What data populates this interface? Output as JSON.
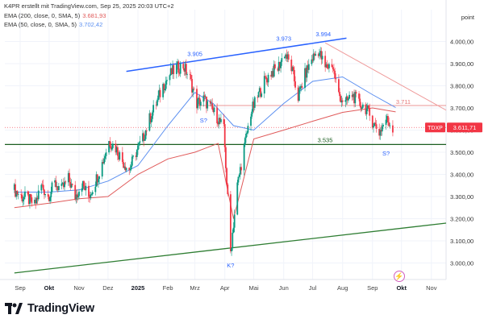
{
  "header": {
    "line1": "K4PR erstellt mit TradingView.com, Sep 25, 2025 20:03 UTC+2",
    "ema200_label": "EMA (200, close, 0, SMA, 5)",
    "ema200_value": "3.681,93",
    "ema50_label": "EMA (50, close, 0, SMA, 5)",
    "ema50_value": "3.702,42"
  },
  "brand": {
    "name": "TradingView",
    "logo_icon": "tradingview-logo-icon"
  },
  "colors": {
    "up": "#089981",
    "down": "#f23645",
    "ema50": "#5b8ff0",
    "ema200": "#e05a5a",
    "upper_trend": "#2962ff",
    "lower_trend": "#2e7d32",
    "support": "#1b5e20",
    "resistance": "#e57373",
    "price_tag": "#f23645"
  },
  "chart_data": {
    "type": "candlestick",
    "y_axis": {
      "title": "point",
      "min": 2900,
      "max": 4150,
      "ticks": [
        3000,
        3100,
        3200,
        3300,
        3400,
        3500,
        3600,
        3700,
        3800,
        3900,
        4000
      ],
      "tick_labels": [
        "3.000,00",
        "3.100,00",
        "3.200,00",
        "3.300,00",
        "3.400,00",
        "3.500,00",
        "3.600,00",
        "3.700,00",
        "3.800,00",
        "3.900,00",
        "4.000,00"
      ]
    },
    "x_axis": {
      "ticks": [
        "Sep",
        "Okt",
        "Nov",
        "Dez",
        "2025",
        "Feb",
        "Mrz",
        "Apr",
        "Mai",
        "Jun",
        "Jul",
        "Aug",
        "Sep",
        "Okt",
        "Nov"
      ],
      "tick_dates": [
        "2024-09-01",
        "2024-10-01",
        "2024-11-01",
        "2024-12-01",
        "2025-01-01",
        "2025-02-01",
        "2025-03-01",
        "2025-04-01",
        "2025-05-01",
        "2025-06-01",
        "2025-07-01",
        "2025-08-01",
        "2025-09-01",
        "2025-10-01",
        "2025-11-01"
      ],
      "highlighted": [
        "2025",
        "Okt"
      ]
    },
    "ohlc_week_close_path": [
      [
        "2024-08-26",
        3330
      ],
      [
        "2024-09-02",
        3300
      ],
      [
        "2024-09-09",
        3290
      ],
      [
        "2024-09-16",
        3260
      ],
      [
        "2024-09-23",
        3350
      ],
      [
        "2024-09-30",
        3300
      ],
      [
        "2024-10-07",
        3360
      ],
      [
        "2024-10-14",
        3330
      ],
      [
        "2024-10-21",
        3380
      ],
      [
        "2024-10-28",
        3300
      ],
      [
        "2024-11-04",
        3360
      ],
      [
        "2024-11-11",
        3300
      ],
      [
        "2024-11-18",
        3370
      ],
      [
        "2024-11-25",
        3450
      ],
      [
        "2024-12-02",
        3550
      ],
      [
        "2024-12-09",
        3520
      ],
      [
        "2024-12-16",
        3460
      ],
      [
        "2024-12-23",
        3420
      ],
      [
        "2024-12-30",
        3500
      ],
      [
        "2025-01-06",
        3560
      ],
      [
        "2025-01-13",
        3650
      ],
      [
        "2025-01-20",
        3720
      ],
      [
        "2025-01-27",
        3800
      ],
      [
        "2025-02-03",
        3850
      ],
      [
        "2025-02-10",
        3880
      ],
      [
        "2025-02-17",
        3890
      ],
      [
        "2025-02-24",
        3830
      ],
      [
        "2025-03-03",
        3720
      ],
      [
        "2025-03-10",
        3740
      ],
      [
        "2025-03-17",
        3700
      ],
      [
        "2025-03-24",
        3660
      ],
      [
        "2025-03-31",
        3600
      ],
      [
        "2025-04-07",
        3050
      ],
      [
        "2025-04-14",
        3350
      ],
      [
        "2025-04-21",
        3520
      ],
      [
        "2025-04-28",
        3680
      ],
      [
        "2025-05-05",
        3750
      ],
      [
        "2025-05-12",
        3820
      ],
      [
        "2025-05-19",
        3860
      ],
      [
        "2025-05-26",
        3880
      ],
      [
        "2025-06-02",
        3950
      ],
      [
        "2025-06-09",
        3880
      ],
      [
        "2025-06-16",
        3750
      ],
      [
        "2025-06-23",
        3850
      ],
      [
        "2025-06-30",
        3920
      ],
      [
        "2025-07-07",
        3960
      ],
      [
        "2025-07-14",
        3880
      ],
      [
        "2025-07-21",
        3900
      ],
      [
        "2025-07-28",
        3760
      ],
      [
        "2025-08-04",
        3720
      ],
      [
        "2025-08-11",
        3760
      ],
      [
        "2025-08-18",
        3720
      ],
      [
        "2025-08-25",
        3700
      ],
      [
        "2025-09-01",
        3640
      ],
      [
        "2025-09-08",
        3590
      ],
      [
        "2025-09-15",
        3650
      ],
      [
        "2025-09-22",
        3612
      ]
    ],
    "ema50": [
      [
        "2024-08-26",
        3320
      ],
      [
        "2024-10-01",
        3320
      ],
      [
        "2024-11-01",
        3330
      ],
      [
        "2024-12-01",
        3370
      ],
      [
        "2025-01-01",
        3440
      ],
      [
        "2025-02-01",
        3620
      ],
      [
        "2025-03-01",
        3770
      ],
      [
        "2025-03-20",
        3720
      ],
      [
        "2025-04-10",
        3620
      ],
      [
        "2025-05-01",
        3600
      ],
      [
        "2025-06-01",
        3720
      ],
      [
        "2025-07-01",
        3820
      ],
      [
        "2025-08-01",
        3840
      ],
      [
        "2025-09-01",
        3760
      ],
      [
        "2025-09-25",
        3702
      ]
    ],
    "ema200": [
      [
        "2024-08-26",
        3250
      ],
      [
        "2024-10-01",
        3270
      ],
      [
        "2024-11-01",
        3290
      ],
      [
        "2024-12-01",
        3300
      ],
      [
        "2025-01-01",
        3400
      ],
      [
        "2025-02-01",
        3470
      ],
      [
        "2025-03-01",
        3500
      ],
      [
        "2025-03-25",
        3540
      ],
      [
        "2025-04-10",
        3200
      ],
      [
        "2025-05-01",
        3560
      ],
      [
        "2025-06-01",
        3600
      ],
      [
        "2025-07-01",
        3640
      ],
      [
        "2025-08-01",
        3680
      ],
      [
        "2025-09-01",
        3700
      ],
      [
        "2025-09-25",
        3682
      ]
    ],
    "annotations": {
      "peaks": [
        {
          "label": "3.905",
          "date": "2025-03-01",
          "value": 3905
        },
        {
          "label": "3.973",
          "date": "2025-06-01",
          "value": 3973
        },
        {
          "label": "3.994",
          "date": "2025-07-12",
          "value": 3994
        }
      ],
      "support": {
        "label": "3.535",
        "value": 3535
      },
      "resistance": {
        "label": "3.711",
        "value": 3711
      },
      "shoulder_marks": [
        {
          "label": "S?",
          "date": "2025-03-10",
          "value": 3635
        },
        {
          "label": "S?",
          "date": "2025-09-15",
          "value": 3485
        }
      ],
      "head_mark": {
        "label": "K?",
        "date": "2025-04-07",
        "value": 2980
      },
      "upper_trendline": [
        [
          "2024-12-20",
          3865
        ],
        [
          "2025-08-05",
          4015
        ]
      ],
      "lower_trendline": [
        [
          "2024-08-26",
          2955
        ],
        [
          "2025-11-30",
          3180
        ]
      ],
      "down_trendline": [
        [
          "2025-07-14",
          3994
        ],
        [
          "2025-11-30",
          3690
        ]
      ]
    },
    "last_price": {
      "symbol": "TDXP",
      "value": "3.611,71"
    }
  }
}
